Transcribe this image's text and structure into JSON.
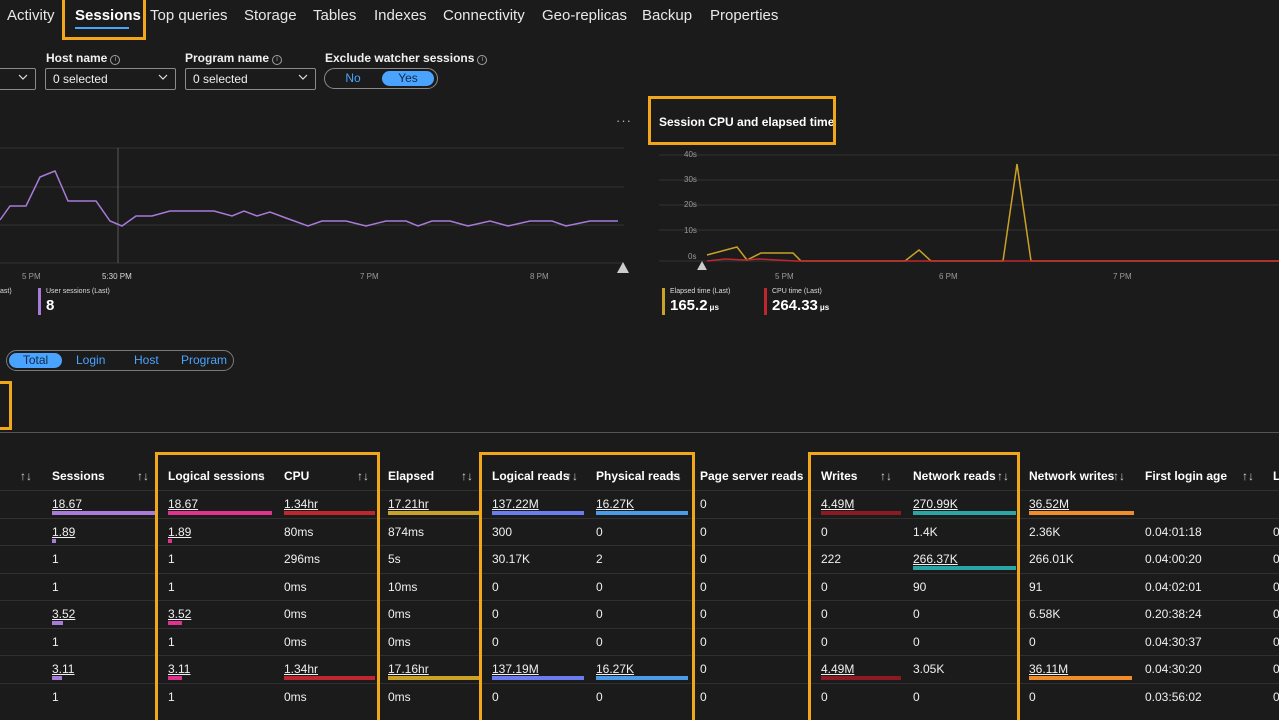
{
  "tabs": [
    {
      "label": "Activity"
    },
    {
      "label": "Sessions"
    },
    {
      "label": "Top queries"
    },
    {
      "label": "Storage"
    },
    {
      "label": "Tables"
    },
    {
      "label": "Indexes"
    },
    {
      "label": "Connectivity"
    },
    {
      "label": "Geo-replicas"
    },
    {
      "label": "Backup"
    },
    {
      "label": "Properties"
    }
  ],
  "filters": {
    "host_name": {
      "label": "Host name",
      "value": "0 selected"
    },
    "program_name": {
      "label": "Program name",
      "value": "0 selected"
    },
    "exclude_watcher": {
      "label": "Exclude watcher sessions",
      "no": "No",
      "yes": "Yes",
      "selected": "Yes"
    }
  },
  "ellipsis": "···",
  "left_chart": {
    "x_ticks": [
      "5 PM",
      "5:30 PM",
      "7 PM",
      "8 PM"
    ],
    "legend": [
      {
        "name": "ast)",
        "value": ""
      },
      {
        "name": "User sessions (Last)",
        "value": "8"
      }
    ],
    "color": "#a87bd9"
  },
  "right_chart": {
    "title": "Session CPU and elapsed time",
    "y_ticks": [
      "40s",
      "30s",
      "20s",
      "10s",
      "0s"
    ],
    "x_ticks": [
      "5 PM",
      "6 PM",
      "7 PM"
    ],
    "legend": [
      {
        "name": "Elapsed time (Last)",
        "value": "165.2",
        "unit": "μs",
        "color": "#c9a227"
      },
      {
        "name": "CPU time (Last)",
        "value": "264.33",
        "unit": "μs",
        "color": "#c0262d"
      }
    ]
  },
  "view_toggle": {
    "options": [
      "Total",
      "Login",
      "Host",
      "Program"
    ],
    "selected": "Total"
  },
  "table": {
    "headers": [
      "Sessions",
      "Logical sessions",
      "CPU",
      "Elapsed",
      "Logical reads",
      "Physical reads",
      "Page server reads",
      "Writes",
      "Network reads",
      "Network writes",
      "First login age",
      "L"
    ],
    "rows": [
      [
        "18.67",
        "18.67",
        "1.34hr",
        "17.21hr",
        "137.22M",
        "16.27K",
        "0",
        "4.49M",
        "270.99K",
        "36.52M",
        "",
        ""
      ],
      [
        "1.89",
        "1.89",
        "80ms",
        "874ms",
        "300",
        "0",
        "0",
        "0",
        "1.4K",
        "2.36K",
        "0.04:01:18",
        "0"
      ],
      [
        "1",
        "1",
        "296ms",
        "5s",
        "30.17K",
        "2",
        "0",
        "222",
        "266.37K",
        "266.01K",
        "0.04:00:20",
        "0"
      ],
      [
        "1",
        "1",
        "0ms",
        "10ms",
        "0",
        "0",
        "0",
        "0",
        "90",
        "91",
        "0.04:02:01",
        "0"
      ],
      [
        "3.52",
        "3.52",
        "0ms",
        "0ms",
        "0",
        "0",
        "0",
        "0",
        "0",
        "6.58K",
        "0.20:38:24",
        "0"
      ],
      [
        "1",
        "1",
        "0ms",
        "0ms",
        "0",
        "0",
        "0",
        "0",
        "0",
        "0",
        "0.04:30:37",
        "0"
      ],
      [
        "3.11",
        "3.11",
        "1.34hr",
        "17.16hr",
        "137.19M",
        "16.27K",
        "0",
        "4.49M",
        "3.05K",
        "36.11M",
        "0.04:30:20",
        "0"
      ],
      [
        "1",
        "1",
        "0ms",
        "0ms",
        "0",
        "0",
        "0",
        "0",
        "0",
        "0",
        "0.03:56:02",
        "0"
      ]
    ]
  }
}
